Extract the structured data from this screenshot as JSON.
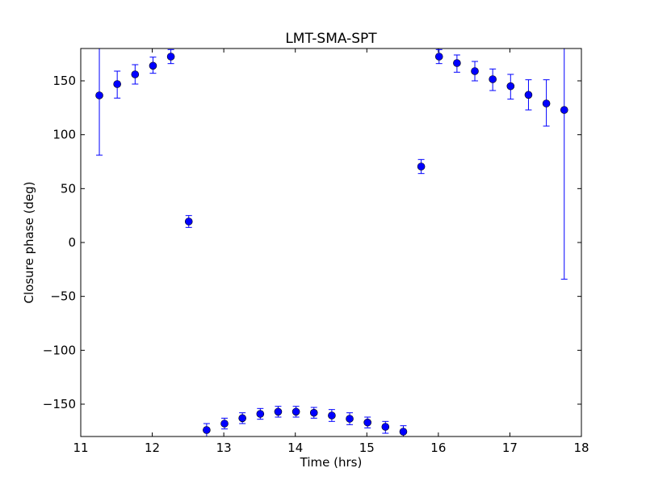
{
  "chart_data": {
    "type": "scatter",
    "title": "LMT-SMA-SPT",
    "xlabel": "Time (hrs)",
    "ylabel": "Closure phase (deg)",
    "xlim": [
      11,
      18
    ],
    "ylim": [
      -180,
      180
    ],
    "xticks": [
      11,
      12,
      13,
      14,
      15,
      16,
      17,
      18
    ],
    "yticks": [
      -150,
      -100,
      -50,
      0,
      50,
      100,
      150
    ],
    "xtick_labels": [
      "11",
      "12",
      "13",
      "14",
      "15",
      "16",
      "17",
      "18"
    ],
    "ytick_labels": [
      "−150",
      "−100",
      "−50",
      "0",
      "50",
      "100",
      "150"
    ],
    "grid": false,
    "marker_color": "#0000ff",
    "errorbar_color": "#0000ff",
    "points": [
      {
        "x": 11.26,
        "y": 136.5,
        "lo": 81,
        "hi": 192
      },
      {
        "x": 11.51,
        "y": 147,
        "lo": 134,
        "hi": 159
      },
      {
        "x": 11.76,
        "y": 156,
        "lo": 147,
        "hi": 165
      },
      {
        "x": 12.01,
        "y": 164,
        "lo": 157,
        "hi": 172
      },
      {
        "x": 12.26,
        "y": 172.5,
        "lo": 166,
        "hi": 179
      },
      {
        "x": 12.51,
        "y": 19.5,
        "lo": 14,
        "hi": 25
      },
      {
        "x": 12.76,
        "y": -174,
        "lo": -180,
        "hi": -168
      },
      {
        "x": 13.01,
        "y": -168,
        "lo": -173,
        "hi": -163
      },
      {
        "x": 13.26,
        "y": -163,
        "lo": -168,
        "hi": -158
      },
      {
        "x": 13.51,
        "y": -159,
        "lo": -164,
        "hi": -154
      },
      {
        "x": 13.76,
        "y": -157,
        "lo": -162,
        "hi": -152
      },
      {
        "x": 14.01,
        "y": -157,
        "lo": -162,
        "hi": -152
      },
      {
        "x": 14.26,
        "y": -158,
        "lo": -163,
        "hi": -153
      },
      {
        "x": 14.51,
        "y": -160.5,
        "lo": -166,
        "hi": -155
      },
      {
        "x": 14.76,
        "y": -163.5,
        "lo": -169,
        "hi": -158
      },
      {
        "x": 15.01,
        "y": -167,
        "lo": -172,
        "hi": -162
      },
      {
        "x": 15.26,
        "y": -171,
        "lo": -177,
        "hi": -166
      },
      {
        "x": 15.51,
        "y": -175.5,
        "lo": -181,
        "hi": -170
      },
      {
        "x": 15.76,
        "y": 70.5,
        "lo": 64,
        "hi": 77
      },
      {
        "x": 16.01,
        "y": 172.5,
        "lo": 166,
        "hi": 179
      },
      {
        "x": 16.26,
        "y": 166.5,
        "lo": 158,
        "hi": 174
      },
      {
        "x": 16.51,
        "y": 159,
        "lo": 150,
        "hi": 168
      },
      {
        "x": 16.76,
        "y": 151.5,
        "lo": 141,
        "hi": 161
      },
      {
        "x": 17.01,
        "y": 145,
        "lo": 133,
        "hi": 156
      },
      {
        "x": 17.26,
        "y": 137,
        "lo": 123,
        "hi": 151
      },
      {
        "x": 17.51,
        "y": 129,
        "lo": 108,
        "hi": 151
      },
      {
        "x": 17.76,
        "y": 123,
        "lo": -34,
        "hi": 200
      }
    ]
  }
}
